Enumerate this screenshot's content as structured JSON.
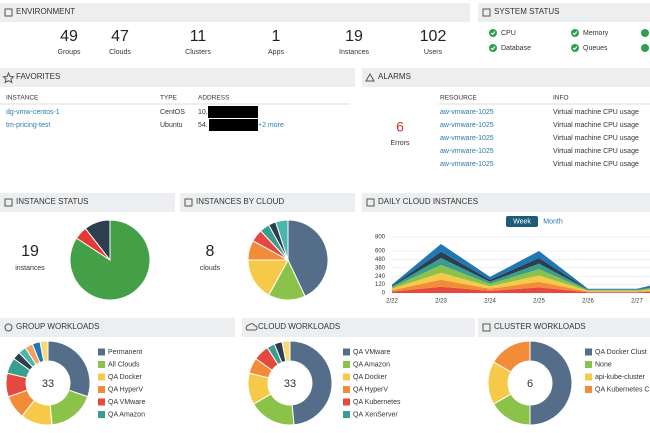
{
  "environment": {
    "title": "ENVIRONMENT",
    "stats": [
      {
        "value": 49,
        "label": "Groups"
      },
      {
        "value": 47,
        "label": "Clouds"
      },
      {
        "value": 11,
        "label": "Clusters"
      },
      {
        "value": 1,
        "label": "Apps"
      },
      {
        "value": 19,
        "label": "Instances"
      },
      {
        "value": 102,
        "label": "Users"
      }
    ]
  },
  "system_status": {
    "title": "SYSTEM STATUS",
    "items": [
      "CPU",
      "Memory",
      "Database",
      "Queues"
    ]
  },
  "favorites": {
    "title": "FAVORITES",
    "columns": [
      "INSTANCE",
      "TYPE",
      "ADDRESS"
    ],
    "rows": [
      [
        "dg-vmw-centos-1",
        "CentOS",
        "10."
      ],
      [
        "tm-pricing-test",
        "Ubuntu",
        "54."
      ]
    ],
    "more": "+2 more"
  },
  "alarms": {
    "title": "ALARMS",
    "count": 6,
    "count_label": "Errors",
    "columns": [
      "RESOURCE",
      "INFO"
    ],
    "rows": [
      [
        "aw-vmware-1025",
        "Virtual machine CPU usage"
      ],
      [
        "aw-vmware-1025",
        "Virtual machine CPU usage"
      ],
      [
        "aw-vmware-1025",
        "Virtual machine CPU usage"
      ],
      [
        "aw-vmware-1025",
        "Virtual machine CPU usage"
      ],
      [
        "aw-vmware-1025",
        "Virtual machine CPU usage"
      ]
    ]
  },
  "instance_status": {
    "title": "INSTANCE STATUS",
    "total": 19,
    "total_label": "instances",
    "chart": {
      "type": "pie",
      "values": [
        16,
        1,
        2
      ],
      "colors": [
        "#43a047",
        "#e53935",
        "#2c3e50"
      ]
    }
  },
  "instances_by_cloud": {
    "title": "INSTANCES BY CLOUD",
    "total": 8,
    "total_label": "clouds",
    "chart": {
      "type": "pie",
      "values": [
        43,
        15,
        17,
        8,
        5,
        4,
        3,
        5
      ],
      "colors": [
        "#546e8a",
        "#8bc34a",
        "#f7c948",
        "#f28c38",
        "#e5483e",
        "#3a9e8f",
        "#2c3e50",
        "#4db6ac"
      ]
    }
  },
  "daily_cloud_instances": {
    "title": "DAILY CLOUD INSTANCES",
    "buttons": [
      "Week",
      "Month"
    ],
    "chart": {
      "type": "stacked-area",
      "categories": [
        "2/22",
        "2/23",
        "2/24",
        "2/25",
        "2/26",
        "2/27",
        null
      ],
      "ylim": [
        0,
        800
      ],
      "yticks": [
        0,
        120,
        240,
        360,
        480,
        600,
        800
      ],
      "grid": true,
      "series": [
        {
          "color": "#e5483e",
          "values": [
            20,
            90,
            30,
            80,
            10,
            10,
            30
          ]
        },
        {
          "color": "#f28c38",
          "values": [
            20,
            100,
            30,
            80,
            10,
            10,
            30
          ]
        },
        {
          "color": "#f7c948",
          "values": [
            20,
            100,
            35,
            90,
            10,
            10,
            35
          ]
        },
        {
          "color": "#8bc34a",
          "values": [
            20,
            110,
            35,
            90,
            10,
            10,
            35
          ]
        },
        {
          "color": "#3a9e8f",
          "values": [
            15,
            100,
            30,
            80,
            8,
            8,
            30
          ]
        },
        {
          "color": "#2c3e50",
          "values": [
            10,
            90,
            30,
            80,
            6,
            6,
            30
          ]
        },
        {
          "color": "#1f78b4",
          "values": [
            15,
            110,
            40,
            100,
            6,
            6,
            40
          ]
        }
      ]
    }
  },
  "group_workloads": {
    "title": "GROUP WORKLOADS",
    "total": 33,
    "chart": {
      "type": "donut",
      "values": [
        10,
        6,
        4,
        3,
        3,
        2,
        1,
        1,
        1,
        1,
        1
      ],
      "labels": [
        "Permanent",
        "All Clouds",
        "QA Docker",
        "QA HyperV",
        "QA VMware",
        "QA Amazon",
        null,
        null,
        null,
        null,
        null
      ],
      "colors": [
        "#546e8a",
        "#8bc34a",
        "#f7c948",
        "#f28c38",
        "#e5483e",
        "#3a9e8f",
        "#2c3e50",
        "#4db6ac",
        "#f4a261",
        "#1f78b4",
        "#f9d976"
      ]
    }
  },
  "cloud_workloads": {
    "title": "CLOUD WORKLOADS",
    "total": 33,
    "chart": {
      "type": "donut",
      "values": [
        16,
        6,
        4,
        2,
        2,
        1,
        1,
        1
      ],
      "labels": [
        "QA VMware",
        "QA Amazon",
        "QA Docker",
        "QA HyperV",
        "QA Kubernetes",
        "QA XenServer",
        null,
        null
      ],
      "colors": [
        "#546e8a",
        "#8bc34a",
        "#f7c948",
        "#f28c38",
        "#e5483e",
        "#3a9e8f",
        "#2c3e50",
        "#f9d976"
      ]
    }
  },
  "cluster_workloads": {
    "title": "CLUSTER WORKLOADS",
    "total": 6,
    "chart": {
      "type": "donut",
      "values": [
        3,
        1,
        1,
        1
      ],
      "labels": [
        "QA Docker Clust",
        "None",
        "api-kube-cluster",
        "QA Kubernetes C"
      ],
      "colors": [
        "#546e8a",
        "#8bc34a",
        "#f7c948",
        "#f28c38"
      ]
    }
  }
}
